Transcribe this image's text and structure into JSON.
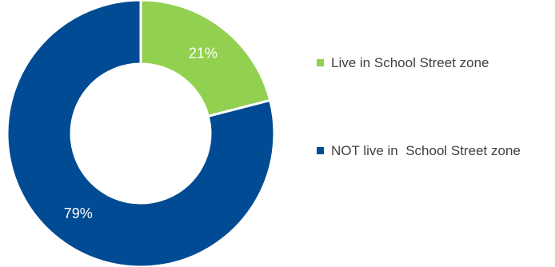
{
  "chart_data": {
    "type": "pie",
    "donut": true,
    "title": "",
    "slices": [
      {
        "label": "Live in School Street zone",
        "value": 21,
        "value_label": "21%",
        "color": "#92d050"
      },
      {
        "label": "NOT live in  School Street zone",
        "value": 79,
        "value_label": "79%",
        "color": "#004b93"
      }
    ],
    "legend_position": "right",
    "border_color": "#ffffff"
  }
}
